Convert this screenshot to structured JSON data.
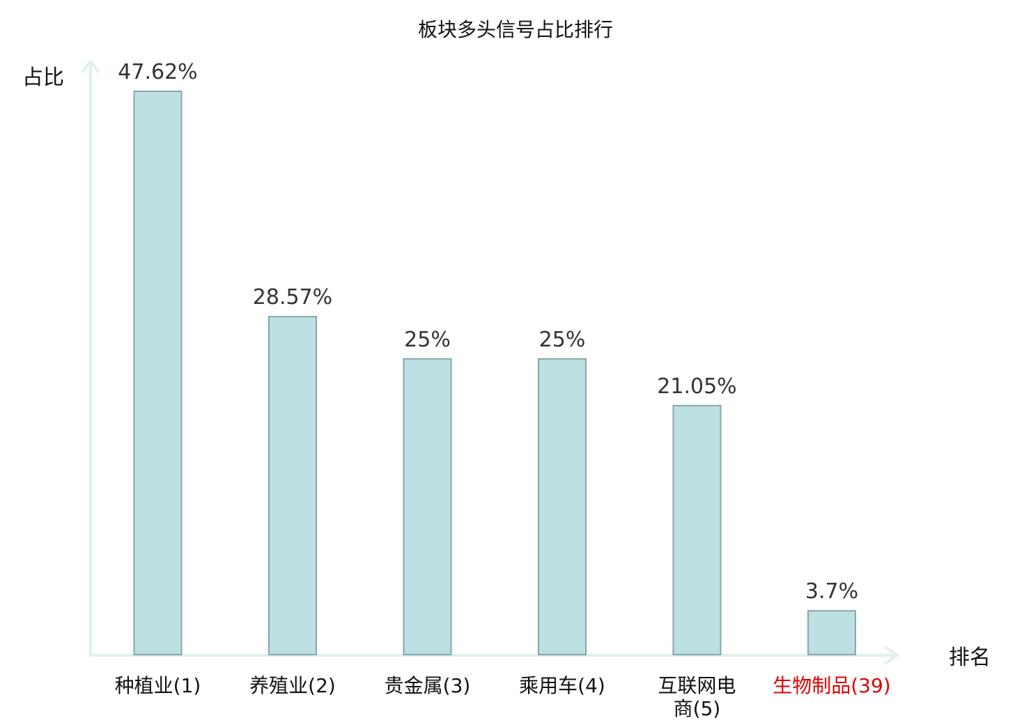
{
  "chart_data": {
    "type": "bar",
    "title": "板块多头信号占比排行",
    "ylabel": "占比",
    "xlabel": "排名",
    "categories": [
      {
        "lines": [
          "种植业(1)"
        ]
      },
      {
        "lines": [
          "养殖业(2)"
        ]
      },
      {
        "lines": [
          "贵金属(3)"
        ]
      },
      {
        "lines": [
          "乘用车(4)"
        ]
      },
      {
        "lines": [
          "互联网电",
          "商(5)"
        ]
      },
      {
        "lines": [
          "生物制品(39)"
        ],
        "highlight": true
      }
    ],
    "values": [
      47.62,
      28.57,
      25,
      25,
      21.05,
      3.7
    ],
    "value_labels": [
      "47.62%",
      "28.57%",
      "25%",
      "25%",
      "21.05%",
      "3.7%"
    ],
    "ylim": [
      0,
      50
    ],
    "grid": false,
    "colors": {
      "bar_fill": "#bde0e3",
      "bar_stroke": "#86a6aa",
      "axis": "#dff1ee",
      "highlight_text": "#dd0000"
    }
  }
}
